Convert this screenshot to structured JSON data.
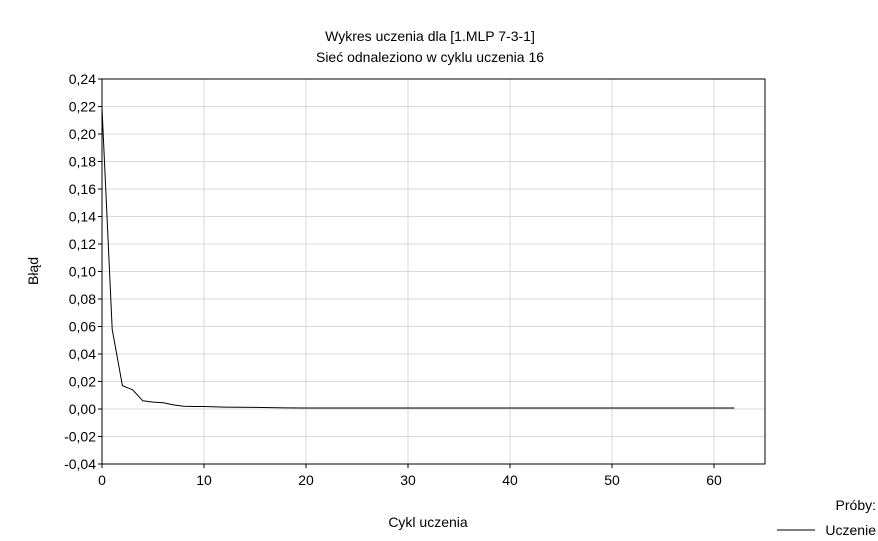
{
  "chart_data": {
    "type": "line",
    "title": "Wykres uczenia dla [1.MLP 7-3-1]",
    "subtitle": "Sieć odnaleziono w cyklu uczenia 16",
    "xlabel": "Cykl uczenia",
    "ylabel": "Błąd",
    "xlim": [
      0,
      65
    ],
    "ylim": [
      -0.04,
      0.24
    ],
    "xticks": [
      0,
      10,
      20,
      30,
      40,
      50,
      60
    ],
    "xtick_labels": [
      "0",
      "10",
      "20",
      "30",
      "40",
      "50",
      "60"
    ],
    "yticks": [
      -0.04,
      -0.02,
      0.0,
      0.02,
      0.04,
      0.06,
      0.08,
      0.1,
      0.12,
      0.14,
      0.16,
      0.18,
      0.2,
      0.22,
      0.24
    ],
    "ytick_labels": [
      "-0,04",
      "-0,02",
      "0,00",
      "0,02",
      "0,04",
      "0,06",
      "0,08",
      "0,10",
      "0,12",
      "0,14",
      "0,16",
      "0,18",
      "0,20",
      "0,22",
      "0,24"
    ],
    "grid": true,
    "legend": {
      "title": "Próby:",
      "position": "bottom-right"
    },
    "series": [
      {
        "name": "Uczenie",
        "color": "#000000",
        "x": [
          0,
          1,
          2,
          3,
          4,
          5,
          6,
          7,
          8,
          9,
          10,
          12,
          15,
          18,
          20,
          30,
          40,
          50,
          62
        ],
        "values": [
          0.219,
          0.058,
          0.017,
          0.014,
          0.006,
          0.005,
          0.0045,
          0.003,
          0.002,
          0.0018,
          0.0018,
          0.0014,
          0.0012,
          0.0008,
          0.0007,
          0.0007,
          0.0007,
          0.0007,
          0.0007
        ]
      }
    ]
  }
}
